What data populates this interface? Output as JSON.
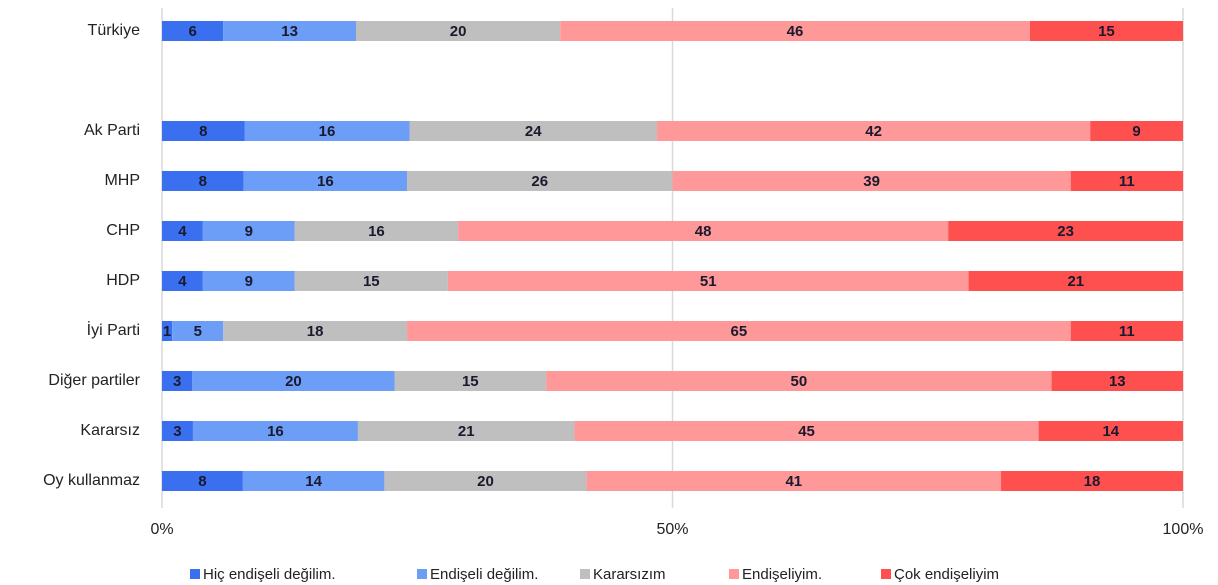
{
  "chart_data": {
    "type": "bar",
    "orientation": "horizontal",
    "stacking": "percent",
    "categories": [
      "Türkiye",
      null,
      "Ak Parti",
      "MHP",
      "CHP",
      "HDP",
      "İyi Parti",
      "Diğer partiler",
      "Kararsız",
      "Oy kullanmaz"
    ],
    "series": [
      {
        "name": "Hiç endişeli değilim.",
        "color": "#3a6ff0",
        "values": [
          6,
          null,
          8,
          8,
          4,
          4,
          1,
          3,
          3,
          8
        ]
      },
      {
        "name": "Endişeli değilim.",
        "color": "#6d9ef7",
        "values": [
          13,
          null,
          16,
          16,
          9,
          9,
          5,
          20,
          16,
          14
        ]
      },
      {
        "name": "Kararsızım",
        "color": "#bfbfbf",
        "values": [
          20,
          null,
          24,
          26,
          16,
          15,
          18,
          15,
          21,
          20
        ]
      },
      {
        "name": "Endişeliyim.",
        "color": "#ff9999",
        "values": [
          46,
          null,
          42,
          39,
          48,
          51,
          65,
          50,
          45,
          41
        ]
      },
      {
        "name": "Çok endişeliyim",
        "color": "#ff5050",
        "values": [
          15,
          null,
          9,
          11,
          23,
          21,
          11,
          13,
          14,
          18
        ]
      }
    ],
    "xlim": [
      0,
      100
    ],
    "xticks": [
      {
        "value": 0,
        "label": "0%"
      },
      {
        "value": 50,
        "label": "50%"
      },
      {
        "value": 100,
        "label": "100%"
      }
    ],
    "grid": true,
    "legend": "bottom"
  }
}
